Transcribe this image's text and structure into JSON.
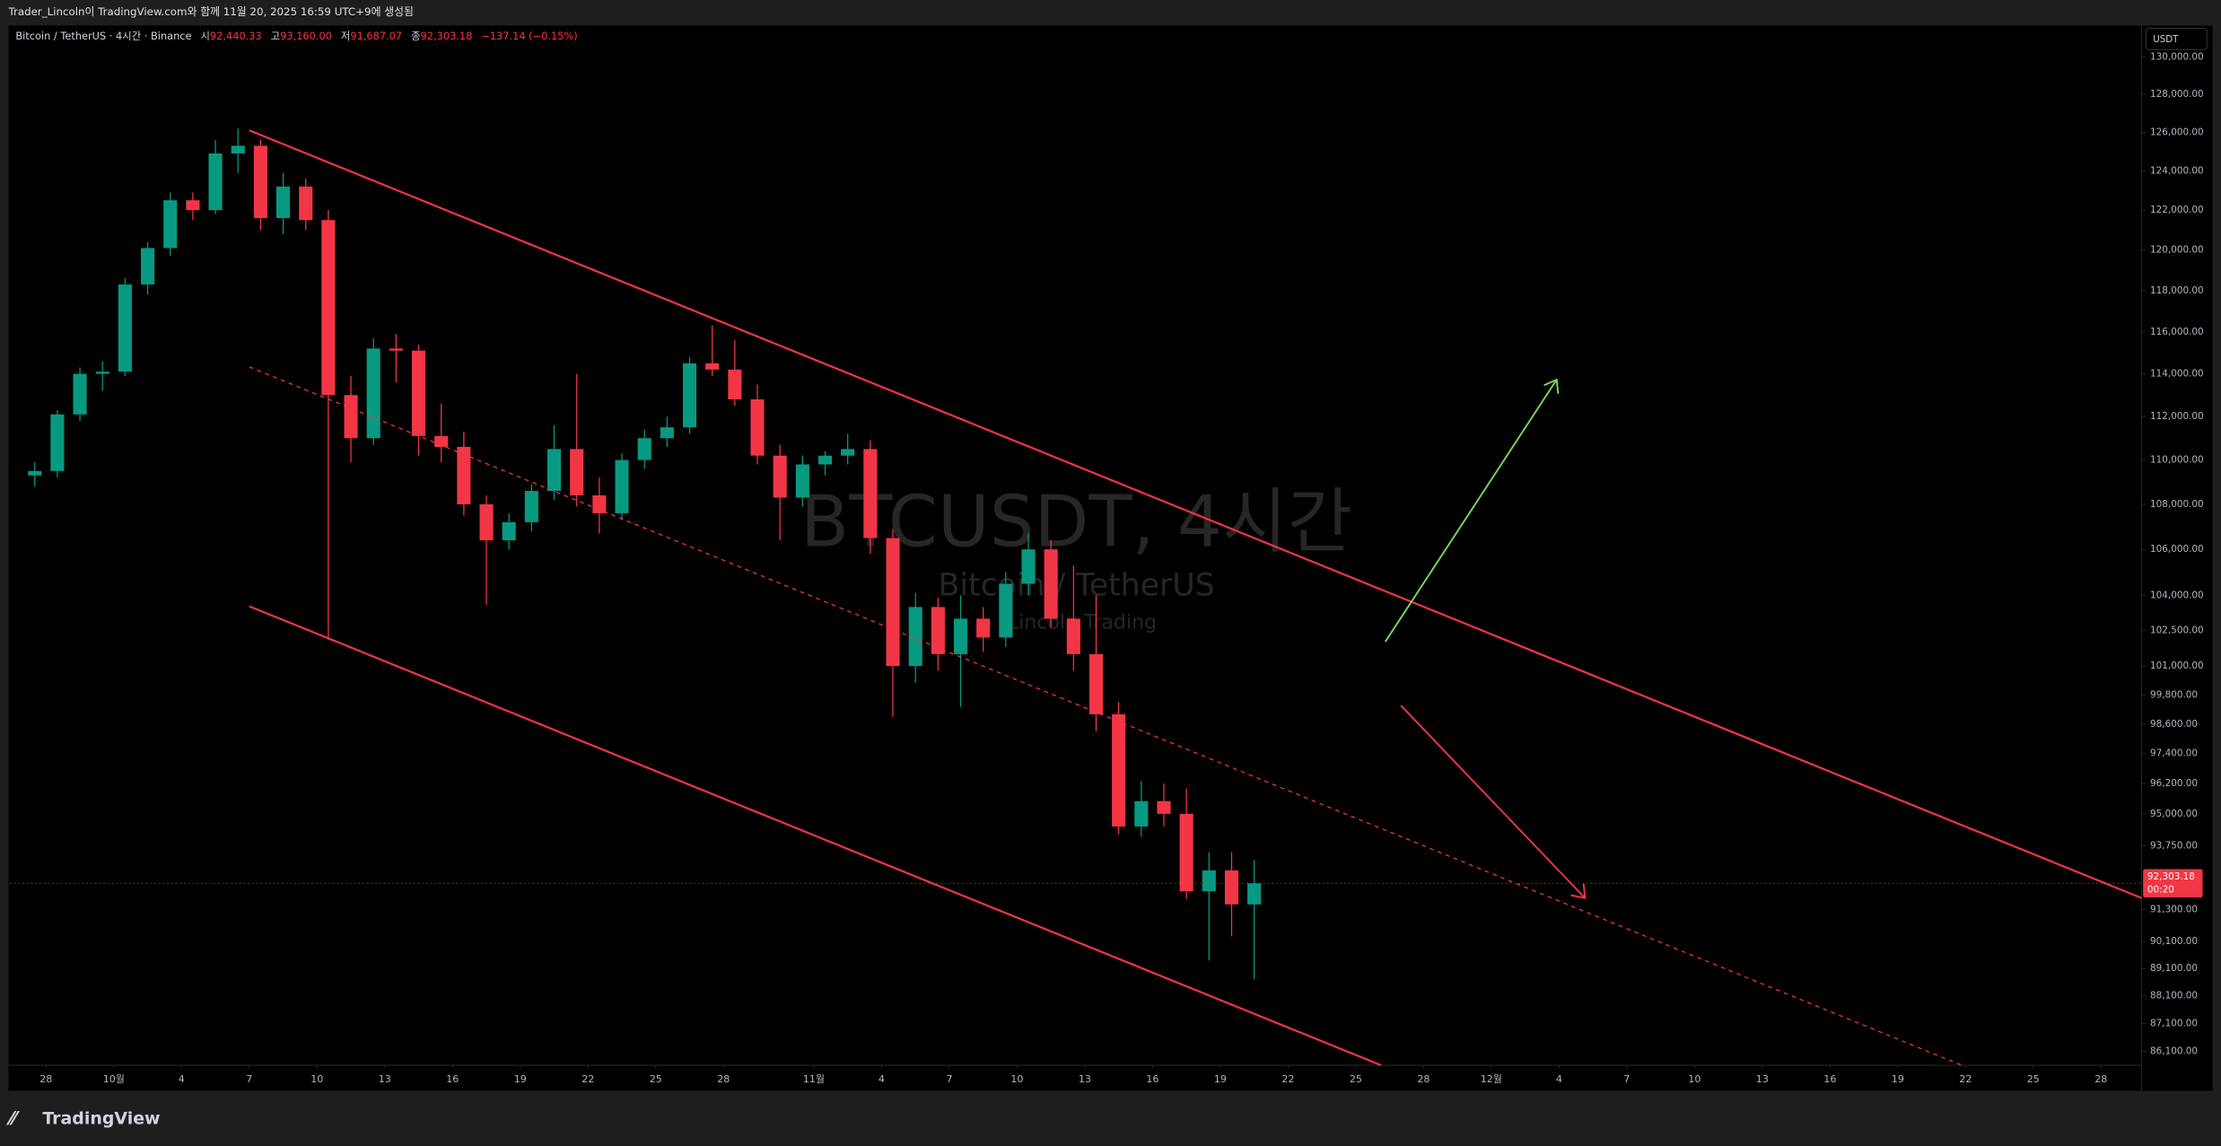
{
  "header": {
    "credit": "Trader_Lincoln이 TradingView.com와 함께 11월 20, 2025 16:59 UTC+9에 생성됨"
  },
  "legend": {
    "symbol": "Bitcoin / TetherUS · 4시간 · Binance",
    "open_label": "시",
    "open": "92,440.33",
    "high_label": "고",
    "high": "93,160.00",
    "low_label": "저",
    "low": "91,687.07",
    "close_label": "종",
    "close": "92,303.18",
    "change": "−137.14 (−0.15%)"
  },
  "currency": "USDT",
  "watermark": {
    "title": "BTCUSDT, 4시간",
    "subtitle": "Bitcoin / TetherUS",
    "author": "Lincoln Trading"
  },
  "footer": {
    "brand": "TradingView"
  },
  "chart_data": {
    "type": "candlestick",
    "log_scale": true,
    "grid": false,
    "up_color": "#089981",
    "down_color": "#f23645",
    "last_price": {
      "value": 92303.18,
      "label": "92,303.18",
      "countdown": "00:20"
    },
    "xlim": [
      -1.6,
      92.8
    ],
    "xticks": [
      {
        "value": 0,
        "label": "28"
      },
      {
        "value": 3,
        "label": "10월"
      },
      {
        "value": 6,
        "label": "4"
      },
      {
        "value": 9,
        "label": "7"
      },
      {
        "value": 12,
        "label": "10"
      },
      {
        "value": 15,
        "label": "13"
      },
      {
        "value": 18,
        "label": "16"
      },
      {
        "value": 21,
        "label": "19"
      },
      {
        "value": 24,
        "label": "22"
      },
      {
        "value": 27,
        "label": "25"
      },
      {
        "value": 30,
        "label": "28"
      },
      {
        "value": 34,
        "label": "11월"
      },
      {
        "value": 37,
        "label": "4"
      },
      {
        "value": 40,
        "label": "7"
      },
      {
        "value": 43,
        "label": "10"
      },
      {
        "value": 46,
        "label": "13"
      },
      {
        "value": 49,
        "label": "16"
      },
      {
        "value": 52,
        "label": "19"
      },
      {
        "value": 55,
        "label": "22"
      },
      {
        "value": 58,
        "label": "25"
      },
      {
        "value": 61,
        "label": "28"
      },
      {
        "value": 64,
        "label": "12월"
      },
      {
        "value": 67,
        "label": "4"
      },
      {
        "value": 70,
        "label": "7"
      },
      {
        "value": 73,
        "label": "10"
      },
      {
        "value": 76,
        "label": "13"
      },
      {
        "value": 79,
        "label": "16"
      },
      {
        "value": 82,
        "label": "19"
      },
      {
        "value": 85,
        "label": "22"
      },
      {
        "value": 88,
        "label": "25"
      },
      {
        "value": 91,
        "label": "28"
      }
    ],
    "ylim": [
      85600,
      131700
    ],
    "yticks": [
      {
        "value": 130000,
        "label": "130,000.00"
      },
      {
        "value": 128000,
        "label": "128,000.00"
      },
      {
        "value": 126000,
        "label": "126,000.00"
      },
      {
        "value": 124000,
        "label": "124,000.00"
      },
      {
        "value": 122000,
        "label": "122,000.00"
      },
      {
        "value": 120000,
        "label": "120,000.00"
      },
      {
        "value": 118000,
        "label": "118,000.00"
      },
      {
        "value": 116000,
        "label": "116,000.00"
      },
      {
        "value": 114000,
        "label": "114,000.00"
      },
      {
        "value": 112000,
        "label": "112,000.00"
      },
      {
        "value": 110000,
        "label": "110,000.00"
      },
      {
        "value": 108000,
        "label": "108,000.00"
      },
      {
        "value": 106000,
        "label": "106,000.00"
      },
      {
        "value": 104000,
        "label": "104,000.00"
      },
      {
        "value": 102500,
        "label": "102,500.00"
      },
      {
        "value": 101000,
        "label": "101,000.00"
      },
      {
        "value": 99800,
        "label": "99,800.00"
      },
      {
        "value": 98600,
        "label": "98,600.00"
      },
      {
        "value": 97400,
        "label": "97,400.00"
      },
      {
        "value": 96200,
        "label": "96,200.00"
      },
      {
        "value": 95000,
        "label": "95,000.00"
      },
      {
        "value": 93750,
        "label": "93,750.00"
      },
      {
        "value": 91300,
        "label": "91,300.00"
      },
      {
        "value": 90100,
        "label": "90,100.00"
      },
      {
        "value": 89100,
        "label": "89,100.00"
      },
      {
        "value": 88100,
        "label": "88,100.00"
      },
      {
        "value": 87100,
        "label": "87,100.00"
      },
      {
        "value": 86100,
        "label": "86,100.00"
      }
    ],
    "x": [
      -0.5,
      0.5,
      1.5,
      2.5,
      3.5,
      4.5,
      5.5,
      6.5,
      7.5,
      8.5,
      9.5,
      10.5,
      11.5,
      12.5,
      13.5,
      14.5,
      15.5,
      16.5,
      17.5,
      18.5,
      19.5,
      20.5,
      21.5,
      22.5,
      23.5,
      24.5,
      25.5,
      26.5,
      27.5,
      28.5,
      29.5,
      30.5,
      31.5,
      32.5,
      33.5,
      34.5,
      35.5,
      36.5,
      37.5,
      38.5,
      39.5,
      40.5,
      41.5,
      42.5,
      43.5,
      44.5,
      45.5,
      46.5,
      47.5,
      48.5,
      49.5,
      50.5,
      51.5,
      52.5,
      53.5
    ],
    "open": [
      109300,
      109500,
      112100,
      114000,
      114100,
      118300,
      120100,
      122500,
      122000,
      124900,
      125300,
      121600,
      123200,
      121500,
      113000,
      111000,
      115200,
      115100,
      111100,
      110600,
      108000,
      106400,
      107200,
      108600,
      110500,
      108400,
      107600,
      110000,
      111000,
      111500,
      114500,
      114200,
      112800,
      110200,
      108300,
      109800,
      110200,
      110500,
      106500,
      101000,
      103500,
      101500,
      103000,
      102200,
      104500,
      106000,
      103000,
      101500,
      99000,
      94500,
      95500,
      95000,
      92000,
      92800,
      91500
    ],
    "high": [
      109900,
      112300,
      114300,
      114600,
      118600,
      120400,
      122900,
      122900,
      125600,
      126200,
      125600,
      123900,
      123600,
      122000,
      113900,
      115700,
      115900,
      115400,
      112600,
      111300,
      108400,
      107600,
      108900,
      111600,
      114000,
      109200,
      110300,
      111400,
      112000,
      114800,
      116300,
      115600,
      113500,
      110700,
      110200,
      110400,
      111200,
      110900,
      106900,
      104100,
      103900,
      104000,
      103500,
      105000,
      106700,
      106400,
      105300,
      104000,
      99500,
      96300,
      96200,
      96000,
      93500,
      93500,
      93200
    ],
    "low": [
      108800,
      109200,
      111800,
      113200,
      113900,
      117800,
      119700,
      121500,
      121800,
      123900,
      121000,
      120800,
      121000,
      102100,
      109900,
      110700,
      113600,
      110200,
      109900,
      107500,
      103600,
      106000,
      106800,
      108200,
      107900,
      106700,
      107300,
      109600,
      110600,
      111200,
      113900,
      112500,
      109800,
      106400,
      107900,
      109300,
      109800,
      105800,
      98900,
      100300,
      100800,
      99300,
      101600,
      101800,
      104000,
      102600,
      100800,
      98300,
      94200,
      94100,
      94500,
      91700,
      89400,
      90300,
      88700
    ],
    "close": [
      109500,
      112100,
      114000,
      114100,
      118300,
      120100,
      122500,
      122000,
      124900,
      125300,
      121600,
      123200,
      121500,
      113000,
      111000,
      115200,
      115100,
      111100,
      110600,
      108000,
      106400,
      107200,
      108600,
      110500,
      108400,
      107600,
      110000,
      111000,
      111500,
      114500,
      114200,
      112800,
      110200,
      108300,
      109800,
      110200,
      110500,
      106500,
      101000,
      103500,
      101500,
      103000,
      102200,
      104500,
      106000,
      103000,
      101500,
      99000,
      94500,
      95500,
      95000,
      92000,
      92800,
      91500,
      92303.18
    ]
  }
}
